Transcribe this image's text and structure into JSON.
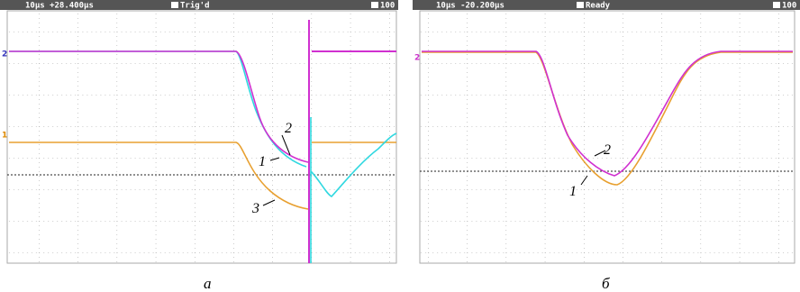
{
  "panels": [
    {
      "header": {
        "timebase": "10µs +28.400µs",
        "status": "Trig'd",
        "scale": "100"
      },
      "channels": [
        "2",
        "1"
      ],
      "trace_labels": [
        "2",
        "1",
        "3"
      ],
      "caption": "a"
    },
    {
      "header": {
        "timebase": "10µs -20.200µs",
        "status": "Ready",
        "scale": "100"
      },
      "channels": [
        "2"
      ],
      "trace_labels": [
        "2",
        "1"
      ],
      "caption": "б"
    }
  ]
}
